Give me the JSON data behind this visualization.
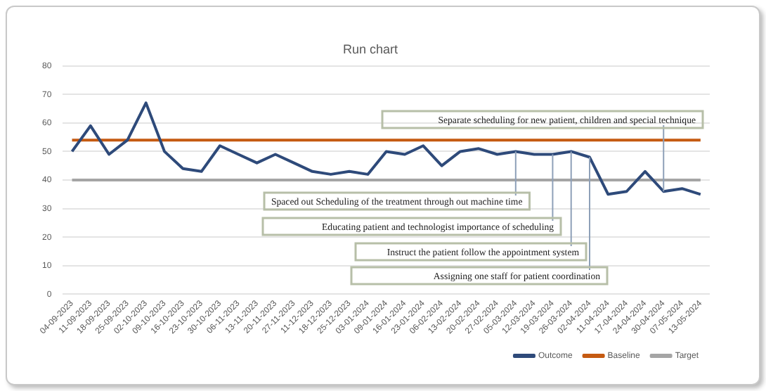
{
  "chart_data": {
    "type": "line",
    "title": "Run chart",
    "categories": [
      "04-09-2023",
      "11-09-2023",
      "18-09-2023",
      "25-09-2023",
      "02-10-2023",
      "09-10-2023",
      "16-10-2023",
      "23-10-2023",
      "30-10-2023",
      "06-11-2023",
      "13-11-2023",
      "20-11-2023",
      "27-11-2023",
      "11-12-2023",
      "18-12-2023",
      "25-12-2023",
      "03-01-2024",
      "09-01-2024",
      "16-01-2024",
      "23-01-2024",
      "06-02-2024",
      "13-02-2024",
      "20-02-2024",
      "27-02-2024",
      "05-03-2024",
      "12-03-2024",
      "19-03-2024",
      "26-03-2024",
      "02-04-2024",
      "11-04-2024",
      "17-04-2024",
      "24-04-2024",
      "30-04-2024",
      "07-05-2024",
      "13-05-2024"
    ],
    "series": [
      {
        "name": "Outcome",
        "color": "#2e4a7a",
        "values": [
          50,
          59,
          49,
          54,
          67,
          50,
          44,
          43,
          52,
          49,
          46,
          49,
          46,
          43,
          42,
          43,
          42,
          50,
          49,
          52,
          45,
          50,
          51,
          49,
          50,
          49,
          49,
          50,
          48,
          35,
          36,
          43,
          36,
          37,
          35
        ]
      },
      {
        "name": "Baseline",
        "color": "#c55a11",
        "values": [
          54,
          54,
          54,
          54,
          54,
          54,
          54,
          54,
          54,
          54,
          54,
          54,
          54,
          54,
          54,
          54,
          54,
          54,
          54,
          54,
          54,
          54,
          54,
          54,
          54,
          54,
          54,
          54,
          54,
          54,
          54,
          54,
          54,
          54,
          54
        ]
      },
      {
        "name": "Target",
        "color": "#a5a5a5",
        "values": [
          40,
          40,
          40,
          40,
          40,
          40,
          40,
          40,
          40,
          40,
          40,
          40,
          40,
          40,
          40,
          40,
          40,
          40,
          40,
          40,
          40,
          40,
          40,
          40,
          40,
          40,
          40,
          40,
          40,
          40,
          40,
          40,
          40,
          40,
          40
        ]
      }
    ],
    "ylim": [
      0,
      80
    ],
    "yticks": [
      0,
      10,
      20,
      30,
      40,
      50,
      60,
      70,
      80
    ],
    "grid": "y",
    "legend": "bottom",
    "marker": "none",
    "annotations": [
      {
        "text": "Separate scheduling for new patient, children and special technique",
        "x": "30-04-2024",
        "y": 36
      },
      {
        "text": "Spaced out Scheduling of the treatment through out machine time",
        "x": "05-03-2024",
        "y": 50
      },
      {
        "text": "Educating patient and technologist importance of scheduling",
        "x": "19-03-2024",
        "y": 49
      },
      {
        "text": "Instruct the patient follow the appointment system",
        "x": "26-03-2024",
        "y": 50
      },
      {
        "text": "Assigning one staff for patient coordination",
        "x": "02-04-2024",
        "y": 48
      }
    ]
  }
}
